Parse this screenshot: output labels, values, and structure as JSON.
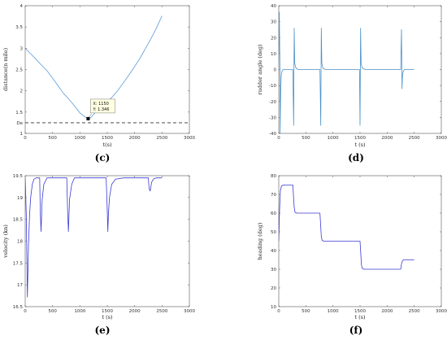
{
  "chart_data": [
    {
      "id": "c",
      "type": "line",
      "panel_label": "(c)",
      "xlabel": "t(s)",
      "ylabel": "distance(n mile)",
      "xlim": [
        0,
        3000
      ],
      "ylim": [
        1,
        4
      ],
      "xticks": [
        "0",
        "500",
        "1000",
        "1500",
        "2000",
        "2500",
        "3000"
      ],
      "yticks": [
        "1",
        "1.5",
        "2",
        "2.5",
        "3",
        "3.5",
        "4"
      ],
      "color": "#5b9bd5",
      "series": [
        {
          "x": [
            0,
            100,
            200,
            300,
            400,
            500,
            600,
            700,
            800,
            900,
            1000,
            1100,
            1150,
            1200,
            1300,
            1400,
            1500,
            1600,
            1700,
            1800,
            1900,
            2000,
            2100,
            2200,
            2300,
            2400,
            2500
          ],
          "y": [
            3.0,
            2.87,
            2.74,
            2.6,
            2.47,
            2.3,
            2.12,
            1.94,
            1.8,
            1.65,
            1.48,
            1.38,
            1.346,
            1.37,
            1.52,
            1.63,
            1.73,
            1.87,
            2.02,
            2.2,
            2.38,
            2.57,
            2.77,
            3.0,
            3.23,
            3.48,
            3.76
          ]
        }
      ],
      "reference_line": {
        "y": 1.25,
        "label": "De",
        "style": "dashed",
        "color": "#333333"
      },
      "datatip": {
        "x": 1150,
        "y": 1.346,
        "line1": "X: 1150",
        "line2": "Y: 1.346"
      }
    },
    {
      "id": "d",
      "type": "line",
      "panel_label": "(d)",
      "xlabel": "t (s)",
      "ylabel": "rudder angle (deg)",
      "xlim": [
        0,
        3000
      ],
      "ylim": [
        -40,
        40
      ],
      "xticks": [
        "0",
        "500",
        "1000",
        "1500",
        "2000",
        "2500",
        "3000"
      ],
      "yticks": [
        "-40",
        "-30",
        "-20",
        "-10",
        "0",
        "10",
        "20",
        "30",
        "40"
      ],
      "color": "#4a90c8",
      "series": [
        {
          "x": [
            0,
            10,
            20,
            25,
            35,
            45,
            60,
            80,
            100,
            130,
            160,
            200,
            260,
            275,
            285,
            295,
            310,
            330,
            360,
            400,
            500,
            600,
            700,
            760,
            775,
            785,
            795,
            810,
            830,
            860,
            900,
            1000,
            1200,
            1400,
            1490,
            1500,
            1510,
            1520,
            1535,
            1560,
            1600,
            1700,
            1900,
            2100,
            2250,
            2265,
            2275,
            2285,
            2300,
            2320,
            2350,
            2400,
            2500
          ],
          "y": [
            0,
            36,
            5,
            -40,
            -15,
            -4,
            -1,
            0,
            0,
            0,
            0,
            0,
            0,
            -35,
            26,
            4,
            1.5,
            0.5,
            0,
            0,
            0,
            0,
            0,
            0,
            -35,
            26,
            4,
            1.5,
            0.5,
            0,
            0,
            0,
            0,
            0,
            0,
            -35,
            26,
            4,
            1.5,
            0.5,
            0,
            0,
            0,
            0,
            0,
            25,
            -12,
            -3,
            -1,
            0,
            0,
            0,
            0
          ]
        }
      ]
    },
    {
      "id": "e",
      "type": "line",
      "panel_label": "(e)",
      "xlabel": "t (s)",
      "ylabel": "velocity (kn)",
      "xlim": [
        0,
        3000
      ],
      "ylim": [
        16.5,
        19.5
      ],
      "xticks": [
        "0",
        "500",
        "1000",
        "1500",
        "2000",
        "2500",
        "3000"
      ],
      "yticks": [
        "16.5",
        "17",
        "17.5",
        "18",
        "18.5",
        "19",
        "19.5"
      ],
      "color": "#3b3bd4",
      "series": [
        {
          "x": [
            0,
            20,
            40,
            60,
            80,
            100,
            130,
            160,
            200,
            240,
            265,
            275,
            290,
            310,
            340,
            400,
            500,
            700,
            760,
            775,
            790,
            810,
            850,
            900,
            1000,
            1200,
            1480,
            1500,
            1510,
            1520,
            1540,
            1580,
            1650,
            1800,
            2000,
            2250,
            2265,
            2285,
            2310,
            2350,
            2400,
            2500
          ],
          "y": [
            19.45,
            18.6,
            16.72,
            17.9,
            18.6,
            19.0,
            19.3,
            19.42,
            19.45,
            19.45,
            19.45,
            18.7,
            18.22,
            18.95,
            19.3,
            19.45,
            19.45,
            19.45,
            19.45,
            18.7,
            18.22,
            18.95,
            19.3,
            19.45,
            19.45,
            19.45,
            19.45,
            18.7,
            18.22,
            18.6,
            19.0,
            19.3,
            19.42,
            19.45,
            19.45,
            19.45,
            19.2,
            19.15,
            19.35,
            19.43,
            19.45,
            19.45
          ]
        }
      ]
    },
    {
      "id": "f",
      "type": "line",
      "panel_label": "(f)",
      "xlabel": "t (s)",
      "ylabel": "heading (deg)",
      "xlim": [
        0,
        3000
      ],
      "ylim": [
        10,
        80
      ],
      "xticks": [
        "0",
        "500",
        "1000",
        "1500",
        "2000",
        "2500",
        "3000"
      ],
      "yticks": [
        "10",
        "20",
        "30",
        "40",
        "50",
        "60",
        "70",
        "80"
      ],
      "color": "#3b3bd4",
      "series": [
        {
          "x": [
            0,
            15,
            30,
            50,
            80,
            260,
            270,
            285,
            300,
            330,
            760,
            770,
            785,
            800,
            830,
            1500,
            1510,
            1525,
            1540,
            1570,
            2250,
            2260,
            2275,
            2300,
            2500
          ],
          "y": [
            45,
            62,
            72,
            74.5,
            75,
            75,
            70,
            63,
            60.5,
            60,
            60,
            55,
            47.5,
            45.5,
            45,
            45,
            40,
            32.5,
            30.5,
            30,
            30,
            32,
            34,
            35,
            35
          ]
        }
      ]
    }
  ]
}
